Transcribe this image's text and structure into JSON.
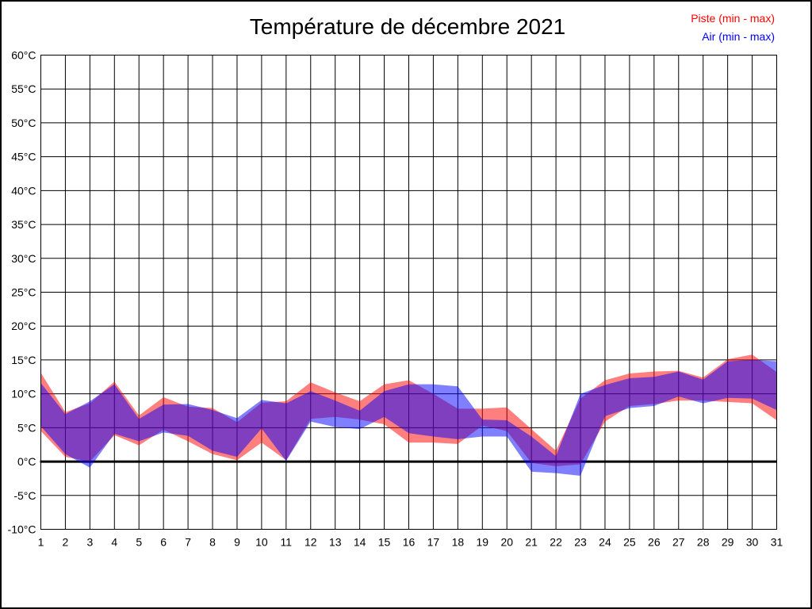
{
  "title": "Température de décembre 2021",
  "legend": {
    "piste_label": "Piste (min - max)",
    "air_label": "Air (min - max)",
    "piste_color": "#ff0000",
    "air_color": "#0000ff"
  },
  "chart_data": {
    "type": "area",
    "title": "Température de décembre 2021",
    "xlabel": "",
    "ylabel": "",
    "ylim": [
      -10,
      60
    ],
    "grid": true,
    "zero_line_weight": 3,
    "legend_position": "top-right",
    "x": [
      1,
      2,
      3,
      4,
      5,
      6,
      7,
      8,
      9,
      10,
      11,
      12,
      13,
      14,
      15,
      16,
      17,
      18,
      19,
      20,
      21,
      22,
      23,
      24,
      25,
      26,
      27,
      28,
      29,
      30,
      31
    ],
    "x_ticks": [
      "1",
      "2",
      "3",
      "4",
      "5",
      "6",
      "7",
      "8",
      "9",
      "10",
      "11",
      "12",
      "13",
      "14",
      "15",
      "16",
      "17",
      "18",
      "19",
      "20",
      "21",
      "22",
      "23",
      "24",
      "25",
      "26",
      "27",
      "28",
      "29",
      "30",
      "31"
    ],
    "y_ticks": [
      {
        "value": 60,
        "label": "60°C"
      },
      {
        "value": 55,
        "label": "55°C"
      },
      {
        "value": 50,
        "label": "50°C"
      },
      {
        "value": 45,
        "label": "45°C"
      },
      {
        "value": 40,
        "label": "40°C"
      },
      {
        "value": 35,
        "label": "35°C"
      },
      {
        "value": 30,
        "label": "30°C"
      },
      {
        "value": 25,
        "label": "25°C"
      },
      {
        "value": 20,
        "label": "20°C"
      },
      {
        "value": 15,
        "label": "15°C"
      },
      {
        "value": 10,
        "label": "10°C"
      },
      {
        "value": 5,
        "label": "5°C"
      },
      {
        "value": 0,
        "label": "0°C"
      },
      {
        "value": -5,
        "label": "-5°C"
      },
      {
        "value": -10,
        "label": "-10°C"
      }
    ],
    "series": [
      {
        "name": "Piste (min - max)",
        "slug": "piste",
        "color": "#ff0000",
        "opacity": 0.5,
        "min": [
          4.5,
          0.7,
          0.0,
          3.9,
          2.4,
          4.7,
          3.0,
          1.1,
          0.2,
          2.8,
          0.2,
          6.3,
          6.6,
          6.2,
          5.5,
          2.8,
          2.8,
          2.6,
          5.3,
          4.5,
          -0.2,
          -0.7,
          -0.4,
          5.9,
          8.2,
          8.5,
          9.0,
          9.0,
          8.8,
          8.6,
          6.1
        ],
        "max": [
          13.1,
          7.3,
          8.6,
          11.8,
          6.8,
          9.5,
          8.1,
          7.9,
          5.8,
          8.7,
          8.9,
          11.7,
          10.2,
          8.9,
          11.4,
          12.0,
          10.0,
          7.8,
          7.8,
          8.0,
          4.8,
          1.6,
          9.3,
          12.0,
          13.0,
          13.3,
          13.4,
          12.4,
          15.1,
          15.8,
          13.2
        ]
      },
      {
        "name": "Air (min - max)",
        "slug": "air",
        "color": "#0000ff",
        "opacity": 0.5,
        "min": [
          5.2,
          1.1,
          -0.9,
          4.1,
          3.0,
          4.3,
          3.8,
          1.6,
          0.7,
          4.9,
          0.1,
          5.9,
          5.1,
          4.8,
          6.6,
          4.2,
          3.7,
          3.3,
          3.7,
          3.7,
          -1.5,
          -1.7,
          -2.1,
          6.7,
          7.9,
          8.2,
          9.6,
          8.6,
          9.4,
          9.3,
          7.6
        ],
        "max": [
          11.6,
          7.0,
          8.9,
          11.4,
          6.3,
          8.4,
          8.5,
          7.6,
          6.4,
          9.1,
          8.6,
          10.4,
          9.0,
          7.5,
          10.4,
          11.4,
          11.4,
          11.1,
          6.2,
          6.1,
          3.7,
          0.8,
          10.0,
          11.3,
          12.3,
          12.5,
          13.3,
          12.1,
          14.8,
          15.0,
          14.8
        ]
      }
    ]
  }
}
